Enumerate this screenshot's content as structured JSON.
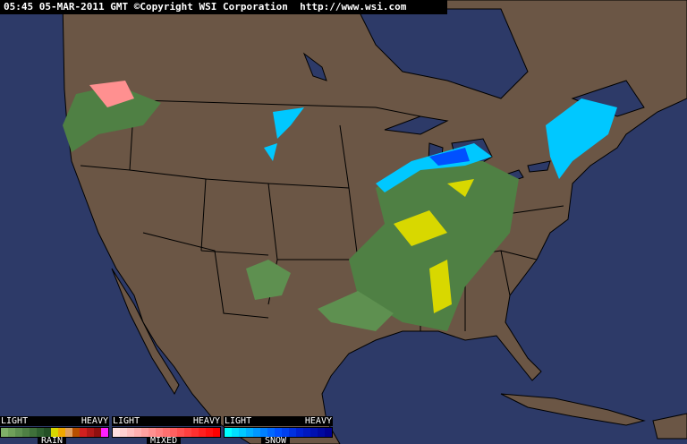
{
  "header": {
    "timestamp": "05:45 05-MAR-2011 GMT",
    "copyright": "©Copyright WSI Corporation",
    "url": "http://www.wsi.com"
  },
  "colors": {
    "ocean": "#2d3a68",
    "land": "#6b5645",
    "borders": "#000000"
  },
  "legend": [
    {
      "name": "RAIN",
      "light": "LIGHT",
      "heavy": "HEAVY",
      "colors": [
        "#7fb069",
        "#6fa05a",
        "#5e9050",
        "#4f8044",
        "#3f703a",
        "#2f6030",
        "#245026",
        "#d8d800",
        "#f0a800",
        "#e0a060",
        "#b85000",
        "#d02020",
        "#b01818",
        "#901010",
        "#ff20ff"
      ]
    },
    {
      "name": "MIXED",
      "light": "LIGHT",
      "heavy": "HEAVY",
      "colors": [
        "#ffe0e0",
        "#ffd0d0",
        "#ffc0c0",
        "#ffb0b0",
        "#ffa0a0",
        "#ff9090",
        "#ff8080",
        "#ff7070",
        "#ff6060",
        "#ff5050",
        "#ff4040",
        "#ff3030",
        "#ff2020",
        "#ff1010",
        "#ff0000"
      ]
    },
    {
      "name": "SNOW",
      "light": "LIGHT",
      "heavy": "HEAVY",
      "colors": [
        "#00ffff",
        "#00e0ff",
        "#00c8ff",
        "#00b0ff",
        "#0098ff",
        "#0080ff",
        "#0068ff",
        "#0050ff",
        "#0040f0",
        "#0030e0",
        "#0020d0",
        "#0018c0",
        "#0010b0",
        "#0008a0",
        "#000090"
      ]
    }
  ]
}
